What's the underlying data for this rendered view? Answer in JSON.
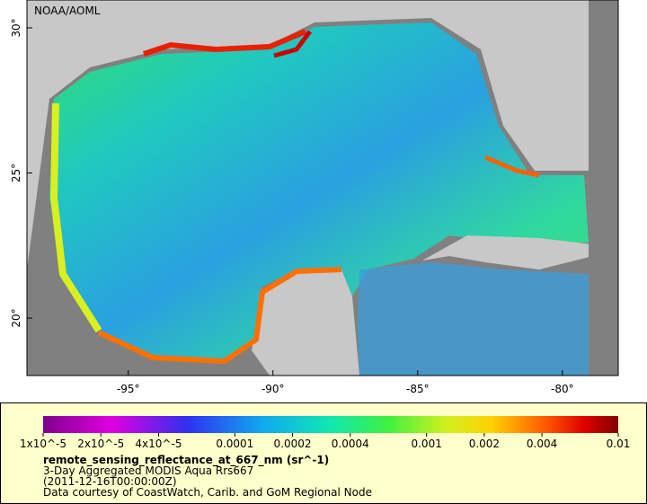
{
  "map": {
    "credit": "NOAA/AOML",
    "xlim": [
      -98.5,
      -78.07
    ],
    "ylim": [
      18.02,
      30.96
    ],
    "xticks": [
      {
        "value": -95,
        "label": "-95°"
      },
      {
        "value": -90,
        "label": "-90°"
      },
      {
        "value": -85,
        "label": "-85°"
      },
      {
        "value": -80,
        "label": "-80°"
      }
    ],
    "yticks": [
      {
        "value": 20,
        "label": "20°"
      },
      {
        "value": 25,
        "label": "25°"
      },
      {
        "value": 30,
        "label": "30°"
      }
    ]
  },
  "colorbar": {
    "scale": "log",
    "range": [
      1e-05,
      0.01
    ],
    "ticks": [
      {
        "value": 1e-05,
        "label": "1x10^-5"
      },
      {
        "value": 2e-05,
        "label": "2x10^-5"
      },
      {
        "value": 4e-05,
        "label": "4x10^-5"
      },
      {
        "value": 0.0001,
        "label": "0.0001"
      },
      {
        "value": 0.0002,
        "label": "0.0002"
      },
      {
        "value": 0.0004,
        "label": "0.0004"
      },
      {
        "value": 0.001,
        "label": "0.001"
      },
      {
        "value": 0.002,
        "label": "0.002"
      },
      {
        "value": 0.004,
        "label": "0.004"
      },
      {
        "value": 0.01,
        "label": "0.01"
      }
    ]
  },
  "caption": {
    "variable": "remote_sensing_reflectance_at_667_nm (sr^-1)",
    "lines": [
      "3-Day Aggregated MODIS Aqua Rrs667",
      "(2011-12-16T00:00:00Z)",
      "Data courtesy of CoastWatch, Carib. and GoM Regional Node"
    ]
  }
}
